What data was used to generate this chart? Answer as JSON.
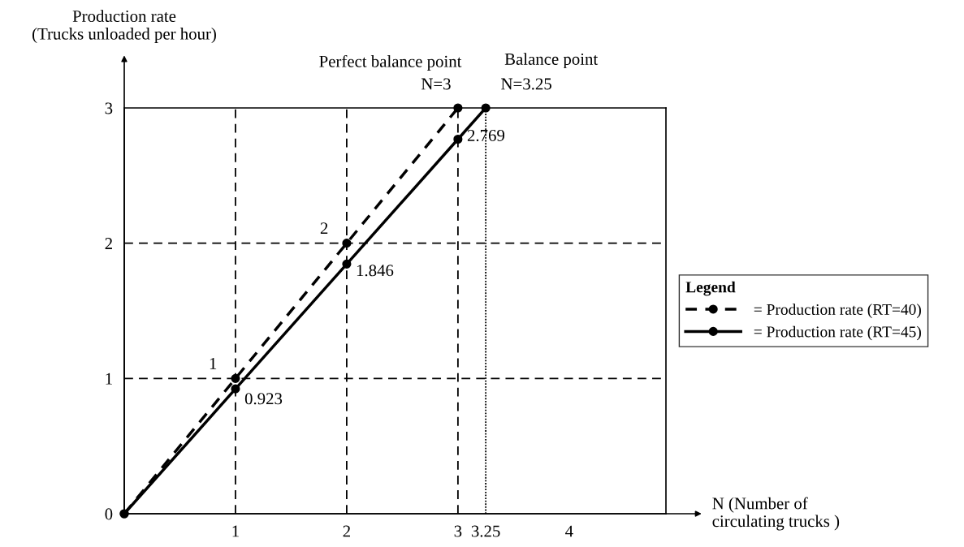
{
  "chart_data": {
    "type": "line",
    "xlabel": "N (Number of\ncirculating trucks )",
    "ylabel": "Production rate\n(Trucks unloaded per hour)",
    "legend_title": "Legend",
    "legend": "right",
    "marker": "circle",
    "series": [
      {
        "name": "= Production rate (RT=40)",
        "color": "#000000",
        "line_style": "dashed",
        "x": [
          0,
          1,
          2,
          3
        ],
        "values": [
          0,
          1,
          2,
          3
        ]
      },
      {
        "name": "= Production rate (RT=45)",
        "color": "#000000",
        "line_style": "solid",
        "x": [
          0,
          1,
          2,
          3,
          3.25
        ],
        "values": [
          0,
          0.923,
          1.846,
          2.769,
          3
        ]
      }
    ],
    "xlim": [
      0,
      4.87
    ],
    "ylim": [
      0,
      3
    ],
    "xticks": [
      1,
      2,
      3,
      3.25,
      4
    ],
    "yticks": [
      0,
      1,
      2,
      3
    ],
    "ref_lines": [
      {
        "axis": "x",
        "value": 1,
        "line_style": "dashed",
        "color": "#000000"
      },
      {
        "axis": "x",
        "value": 2,
        "line_style": "dashed",
        "color": "#000000"
      },
      {
        "axis": "x",
        "value": 3,
        "line_style": "dashed",
        "color": "#000000"
      },
      {
        "axis": "y",
        "value": 1,
        "line_style": "dashed",
        "color": "#000000"
      },
      {
        "axis": "y",
        "value": 2,
        "line_style": "dashed",
        "color": "#000000"
      },
      {
        "axis": "x",
        "value": 3.25,
        "line_style": "dotted",
        "color": "#000000"
      }
    ],
    "annotations": [
      {
        "text": "Perfect balance point",
        "x": 3,
        "y": 3
      },
      {
        "text": "N=3",
        "x": 3,
        "y": 3
      },
      {
        "text": "Balance point",
        "x": 3.25,
        "y": 3
      },
      {
        "text": "N=3.25",
        "x": 3.25,
        "y": 3
      },
      {
        "text": "2.769",
        "x": 3,
        "y": 2.769
      },
      {
        "text": "1.846",
        "x": 2,
        "y": 1.846
      },
      {
        "text": "0.923",
        "x": 1,
        "y": 0.923
      },
      {
        "text": "1",
        "x": 1,
        "y": 1
      },
      {
        "text": "2",
        "x": 2,
        "y": 2
      }
    ]
  }
}
